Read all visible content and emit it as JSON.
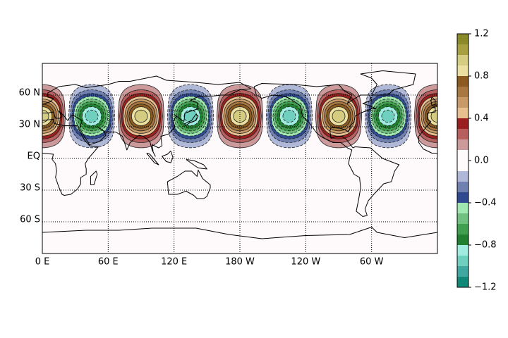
{
  "map": {
    "type": "filled-contour",
    "lat_ticks": [
      {
        "value": 60,
        "label": "60 N"
      },
      {
        "value": 30,
        "label": "30 N"
      },
      {
        "value": 0,
        "label": "EQ"
      },
      {
        "value": -30,
        "label": "30 S"
      },
      {
        "value": -60,
        "label": "60 S"
      }
    ],
    "lon_ticks": [
      {
        "value": 0,
        "label": "0 E"
      },
      {
        "value": 60,
        "label": "60 E"
      },
      {
        "value": 120,
        "label": "120 E"
      },
      {
        "value": 180,
        "label": "180 W"
      },
      {
        "value": 240,
        "label": "120 W"
      },
      {
        "value": 300,
        "label": "60 W"
      }
    ],
    "lonlim": [
      0,
      360
    ],
    "latlim": [
      -90,
      90
    ],
    "grid": true,
    "wavenumber": 4,
    "lat_center": 40,
    "lat_width": 14,
    "anomalies": [
      {
        "lon": 0,
        "value": 0.98
      },
      {
        "lon": 45,
        "value": -0.98
      },
      {
        "lon": 90,
        "value": 0.98
      },
      {
        "lon": 135,
        "value": -0.98
      },
      {
        "lon": 180,
        "value": 0.98
      },
      {
        "lon": 225,
        "value": -0.98
      },
      {
        "lon": 270,
        "value": 0.98
      },
      {
        "lon": 315,
        "value": -0.98
      }
    ],
    "levels": [
      -1.2,
      -1.1,
      -1.0,
      -0.9,
      -0.8,
      -0.7,
      -0.6,
      -0.5,
      -0.4,
      -0.3,
      -0.2,
      -0.1,
      0.1,
      0.2,
      0.3,
      0.4,
      0.5,
      0.6,
      0.7,
      0.8,
      0.9,
      1.0,
      1.1,
      1.2
    ],
    "colors": [
      "#108878",
      "#40a8a0",
      "#70d0c0",
      "#a0ece0",
      "#208030",
      "#40a050",
      "#70c080",
      "#a0e8b0",
      "#304a90",
      "#7080b0",
      "#b0b8d8",
      "#fefafc",
      "#cc9a9a",
      "#b86060",
      "#9a2020",
      "#e8c090",
      "#c89a68",
      "#a87840",
      "#8c5a20",
      "#ece0a0",
      "#d4cc80",
      "#a8a040",
      "#8a8a2a"
    ],
    "colorbar_ticks": [
      {
        "value": 1.2,
        "label": "1.2"
      },
      0.8,
      0.4,
      {
        "value": 0,
        "label": "0.0"
      },
      {
        "value": -0.4,
        "label": "−0.4"
      },
      {
        "value": -0.8,
        "label": "−0.8"
      },
      {
        "value": -1.2,
        "label": "−1.2"
      }
    ]
  }
}
